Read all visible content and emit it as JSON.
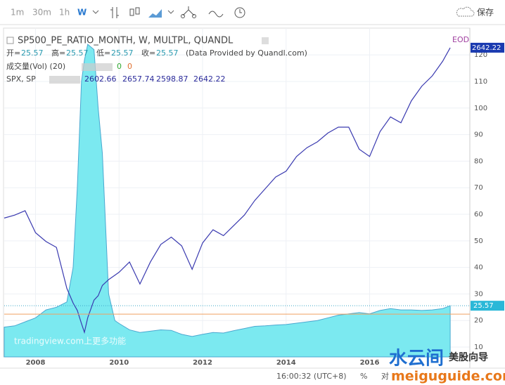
{
  "toolbar": {
    "intervals": [
      "1m",
      "30m",
      "1h",
      "W"
    ],
    "save": "保存"
  },
  "legend": {
    "title_ohlc": {
      "open_label": "开=",
      "open": "25.57",
      "high_label": "高=",
      "high": "25.57",
      "low_label": "低=",
      "low": "25.57",
      "close_label": "收=",
      "close": "25.57",
      "note": "(Data Provided by Quandl.com)"
    },
    "volume": {
      "label": "成交量(Vol) (20)",
      "v1": "0",
      "v2": "0"
    },
    "spx": {
      "label": "SPX, SP",
      "open": "2602.66",
      "high": "2657.74",
      "low": "2598.87",
      "close": "2642.22"
    },
    "eod": "EOD"
  },
  "chart_data": {
    "type": "line",
    "x": [
      2007.25,
      2007.5,
      2007.75,
      2008,
      2008.25,
      2008.5,
      2008.75,
      2008.9,
      2009,
      2009.1,
      2009.17,
      2009.25,
      2009.4,
      2009.5,
      2009.6,
      2009.75,
      2009.9,
      2010,
      2010.25,
      2010.5,
      2010.75,
      2011,
      2011.25,
      2011.5,
      2011.75,
      2012,
      2012.25,
      2012.5,
      2012.75,
      2013,
      2013.25,
      2013.5,
      2013.75,
      2014,
      2014.25,
      2014.5,
      2014.75,
      2015,
      2015.25,
      2015.5,
      2015.75,
      2016,
      2016.25,
      2016.5,
      2016.75,
      2017,
      2017.25,
      2017.5,
      2017.75,
      2017.93
    ],
    "series": [
      {
        "name": "SP500_PE_RATIO_MONTH, W, MULTPL, QUANDL",
        "color": "#7be9f0",
        "values": [
          17.5,
          18,
          19.5,
          21,
          24,
          25,
          27,
          40,
          70,
          110,
          118,
          124,
          122,
          100,
          83,
          30,
          20,
          18.9,
          16.5,
          15.5,
          16,
          16.5,
          16.3,
          14.8,
          14,
          14.8,
          15.5,
          15.3,
          16.2,
          17,
          17.8,
          18,
          18.3,
          18.5,
          19,
          19.5,
          20,
          21,
          22,
          22.5,
          23,
          22.5,
          23.8,
          24.5,
          24,
          24,
          23.8,
          24,
          24.5,
          25.57
        ]
      },
      {
        "name": "SPX",
        "color": "#3a3ab0",
        "axis": "y2",
        "values": [
          1480,
          1500,
          1530,
          1380,
          1320,
          1280,
          1000,
          900,
          850,
          760,
          700,
          800,
          920,
          950,
          1020,
          1060,
          1090,
          1110,
          1180,
          1030,
          1180,
          1300,
          1350,
          1290,
          1130,
          1310,
          1400,
          1360,
          1430,
          1500,
          1600,
          1680,
          1760,
          1800,
          1900,
          1960,
          2000,
          2060,
          2100,
          2100,
          1950,
          1900,
          2070,
          2170,
          2130,
          2280,
          2380,
          2450,
          2550,
          2642.22
        ]
      }
    ],
    "xlim": [
      2007.25,
      2018.4
    ],
    "xticks": [
      2008,
      2010,
      2012,
      2014,
      2016
    ],
    "ylim": [
      7.1,
      130.1
    ],
    "yticks": [
      10,
      20,
      30,
      40,
      50,
      60,
      70,
      80,
      90,
      100,
      110,
      120
    ],
    "y2lim": [
      547,
      2776
    ],
    "hline": {
      "value": 22.4,
      "color": "#f0a060"
    },
    "grid": true
  },
  "watermark": {
    "tv": "tradingview.com上更多功能",
    "cn": "水云间",
    "guide": "美股向导",
    "site": "meiguguide.com"
  },
  "footer": {
    "time": "16:00:32 (UTC+8)",
    "percent": "%",
    "log": "对"
  }
}
